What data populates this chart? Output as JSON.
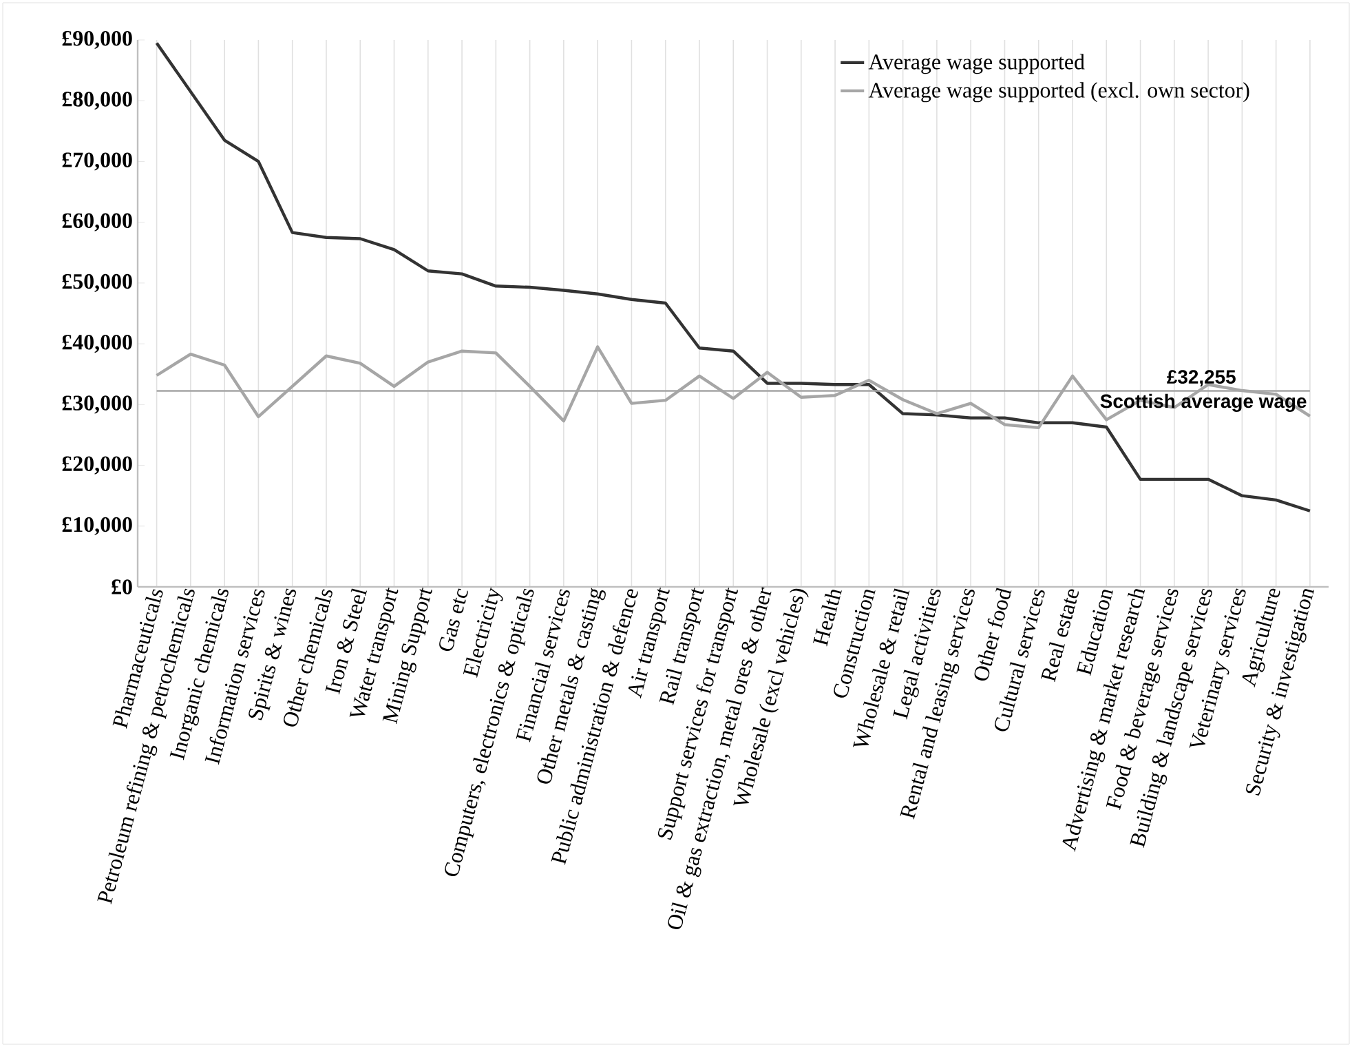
{
  "chart_data": {
    "type": "line",
    "categories": [
      "Pharmaceuticals",
      "Petroleum refining & petrochemicals",
      "Inorganic chemicals",
      "Information services",
      "Spirits & wines",
      "Other chemicals",
      "Iron & Steel",
      "Water transport",
      "Mining Support",
      "Gas etc",
      "Electricity",
      "Computers, electronics & opticals",
      "Financial services",
      "Other metals & casting",
      "Public administration & defence",
      "Air transport",
      "Rail transport",
      "Support services for transport",
      "Oil & gas extraction, metal ores & other",
      "Wholesale (excl vehicles)",
      "Health",
      "Construction",
      "Wholesale & retail",
      "Legal activities",
      "Rental and leasing services",
      "Other food",
      "Cultural services",
      "Real estate",
      "Education",
      "Advertising & market research",
      "Food & beverage services",
      "Building & landscape services",
      "Veterinary services",
      "Agriculture",
      "Security & investigation"
    ],
    "series": [
      {
        "name": "Average wage supported",
        "color": "#333333",
        "values": [
          89500,
          81500,
          73500,
          70000,
          58300,
          57500,
          57300,
          55500,
          52000,
          51500,
          49500,
          49300,
          48800,
          48200,
          47300,
          46700,
          39300,
          38800,
          33500,
          33500,
          33300,
          33300,
          28500,
          28300,
          27800,
          27800,
          27000,
          27000,
          26300,
          17700,
          17700,
          17700,
          15000,
          14300,
          12500
        ]
      },
      {
        "name": "Average wage supported (excl. own sector)",
        "color": "#a6a6a6",
        "values": [
          34800,
          38300,
          36500,
          28000,
          33000,
          38000,
          36800,
          33000,
          37000,
          38800,
          38500,
          33000,
          27300,
          39500,
          30200,
          30700,
          34700,
          31000,
          35300,
          31200,
          31500,
          34000,
          30800,
          28500,
          30200,
          26700,
          26200,
          34700,
          27500,
          30700,
          29500,
          33300,
          32300,
          31700,
          28100
        ]
      }
    ],
    "ylim": [
      0,
      90000
    ],
    "yticks": [
      {
        "value": 0,
        "label": "£0"
      },
      {
        "value": 10000,
        "label": "£10,000"
      },
      {
        "value": 20000,
        "label": "£20,000"
      },
      {
        "value": 30000,
        "label": "£30,000"
      },
      {
        "value": 40000,
        "label": "£40,000"
      },
      {
        "value": 50000,
        "label": "£50,000"
      },
      {
        "value": 60000,
        "label": "£60,000"
      },
      {
        "value": 70000,
        "label": "£70,000"
      },
      {
        "value": 80000,
        "label": "£80,000"
      },
      {
        "value": 90000,
        "label": "£90,000"
      }
    ],
    "ref_lines": [
      {
        "axis": "y",
        "value": 32255,
        "label": "Scottish average wage",
        "color": "#a6a6a6"
      }
    ],
    "annotations": [
      "£32,255"
    ],
    "grid": "x",
    "legend": "top right",
    "marker": "none",
    "line_style": "solid"
  }
}
